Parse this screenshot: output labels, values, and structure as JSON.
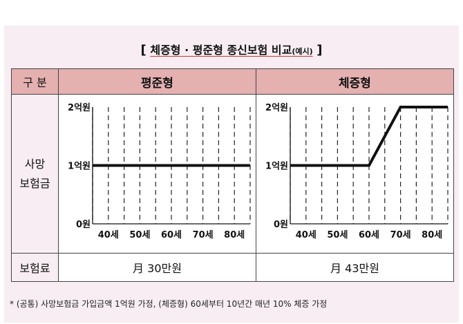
{
  "title": {
    "open_bracket": "[",
    "main": "체증형 · 평준형 종신보험 비교",
    "sub": "(예시)",
    "close_bracket": "]"
  },
  "table": {
    "col_label": "구 분",
    "col_a": "평준형",
    "col_b": "체증형",
    "row_death_line1": "사망",
    "row_death_line2": "보험금",
    "row_premium": "보험료",
    "premium_a": "月 30만원",
    "premium_b": "月 43만원"
  },
  "footnote": "* (공통) 사망보험금 가입금액 1억원 가정, (체증형) 60세부터 10년간 매년 10% 체증 가정",
  "colors": {
    "header_bg": "#e4b0b0",
    "panel_bg": "#f7edf2",
    "line": "#111111"
  },
  "chart_data": [
    {
      "type": "line",
      "name_ref": "평준형",
      "x_categories": [
        "40세",
        "50세",
        "60세",
        "70세",
        "80세"
      ],
      "y_ticks": [
        "0원",
        "1억원",
        "2억원"
      ],
      "ylim": [
        0,
        2
      ],
      "series": [
        {
          "points": [
            [
              35,
              1
            ],
            [
              45,
              1
            ],
            [
              55,
              1
            ],
            [
              65,
              1
            ],
            [
              75,
              1
            ],
            [
              85,
              1
            ]
          ]
        }
      ]
    },
    {
      "type": "line",
      "name_ref": "체증형",
      "x_categories": [
        "40세",
        "50세",
        "60세",
        "70세",
        "80세"
      ],
      "y_ticks": [
        "0원",
        "1억원",
        "2억원"
      ],
      "ylim": [
        0,
        2
      ],
      "series": [
        {
          "points": [
            [
              35,
              1
            ],
            [
              60,
              1
            ],
            [
              70,
              2
            ],
            [
              85,
              2
            ]
          ]
        }
      ]
    }
  ]
}
